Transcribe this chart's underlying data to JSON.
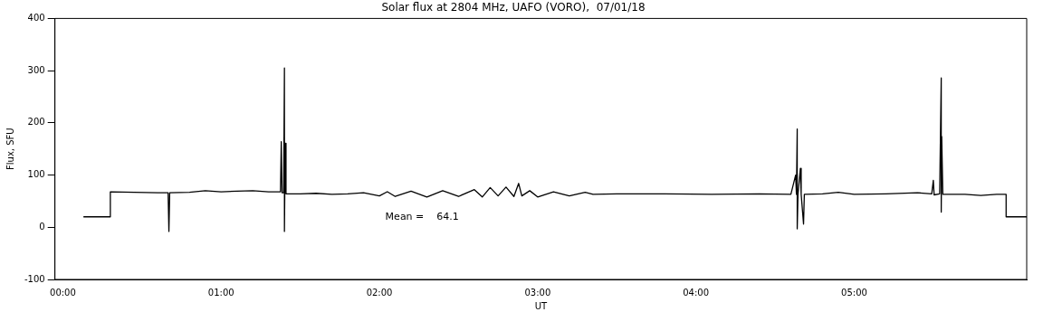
{
  "chart_data": {
    "type": "line",
    "title": "Solar flux at 2804 MHz, UAFO (VORO),  07/01/18",
    "xlabel": "UT",
    "ylabel": "Flux, SFU",
    "xlim": [
      -0.05,
      6.09
    ],
    "ylim": [
      -100,
      400
    ],
    "xticks": [
      {
        "value": 0,
        "label": "00:00"
      },
      {
        "value": 1,
        "label": "01:00"
      },
      {
        "value": 2,
        "label": "02:00"
      },
      {
        "value": 3,
        "label": "03:00"
      },
      {
        "value": 4,
        "label": "04:00"
      },
      {
        "value": 5,
        "label": "05:00"
      }
    ],
    "yticks": [
      -100,
      0,
      100,
      200,
      300,
      400
    ],
    "grid": false,
    "legend": false,
    "marker": "none",
    "line_style": "solid",
    "annotations": [
      "Mean =    64.1"
    ],
    "series": [
      {
        "color": "#000000",
        "x": [
          0.13,
          0.3,
          0.3,
          0.45,
          0.6,
          0.665,
          0.67,
          0.675,
          0.8,
          0.9,
          1.0,
          1.1,
          1.2,
          1.3,
          1.375,
          1.38,
          1.385,
          1.395,
          1.4,
          1.4,
          1.405,
          1.41,
          1.5,
          1.6,
          1.7,
          1.8,
          1.9,
          2.0,
          2.05,
          2.1,
          2.2,
          2.3,
          2.4,
          2.5,
          2.6,
          2.65,
          2.7,
          2.75,
          2.8,
          2.85,
          2.88,
          2.9,
          2.95,
          3.0,
          3.1,
          3.2,
          3.3,
          3.35,
          3.5,
          3.8,
          4.1,
          4.4,
          4.6,
          4.63,
          4.635,
          4.64,
          4.64,
          4.645,
          4.66,
          4.665,
          4.68,
          4.685,
          4.8,
          4.9,
          5.0,
          5.2,
          5.4,
          5.49,
          5.5,
          5.505,
          5.54,
          5.55,
          5.55,
          5.553,
          5.56,
          5.7,
          5.8,
          5.9,
          5.96,
          5.96,
          6.09
        ],
        "values": [
          20,
          20,
          68,
          67,
          66,
          66,
          -8,
          66,
          67,
          70,
          68,
          69,
          70,
          68,
          68,
          164,
          66,
          66,
          305,
          -8,
          161,
          64,
          64,
          65,
          63,
          64,
          66,
          60,
          68,
          59,
          69,
          58,
          70,
          59,
          72,
          58,
          76,
          60,
          77,
          59,
          84,
          60,
          70,
          58,
          68,
          60,
          67,
          63,
          64,
          64,
          63,
          64,
          63,
          100,
          63,
          188,
          -3,
          63,
          113,
          63,
          6,
          63,
          64,
          67,
          63,
          64,
          66,
          64,
          90,
          62,
          64,
          286,
          29,
          174,
          63,
          63,
          61,
          63,
          63,
          20,
          20
        ]
      }
    ]
  }
}
